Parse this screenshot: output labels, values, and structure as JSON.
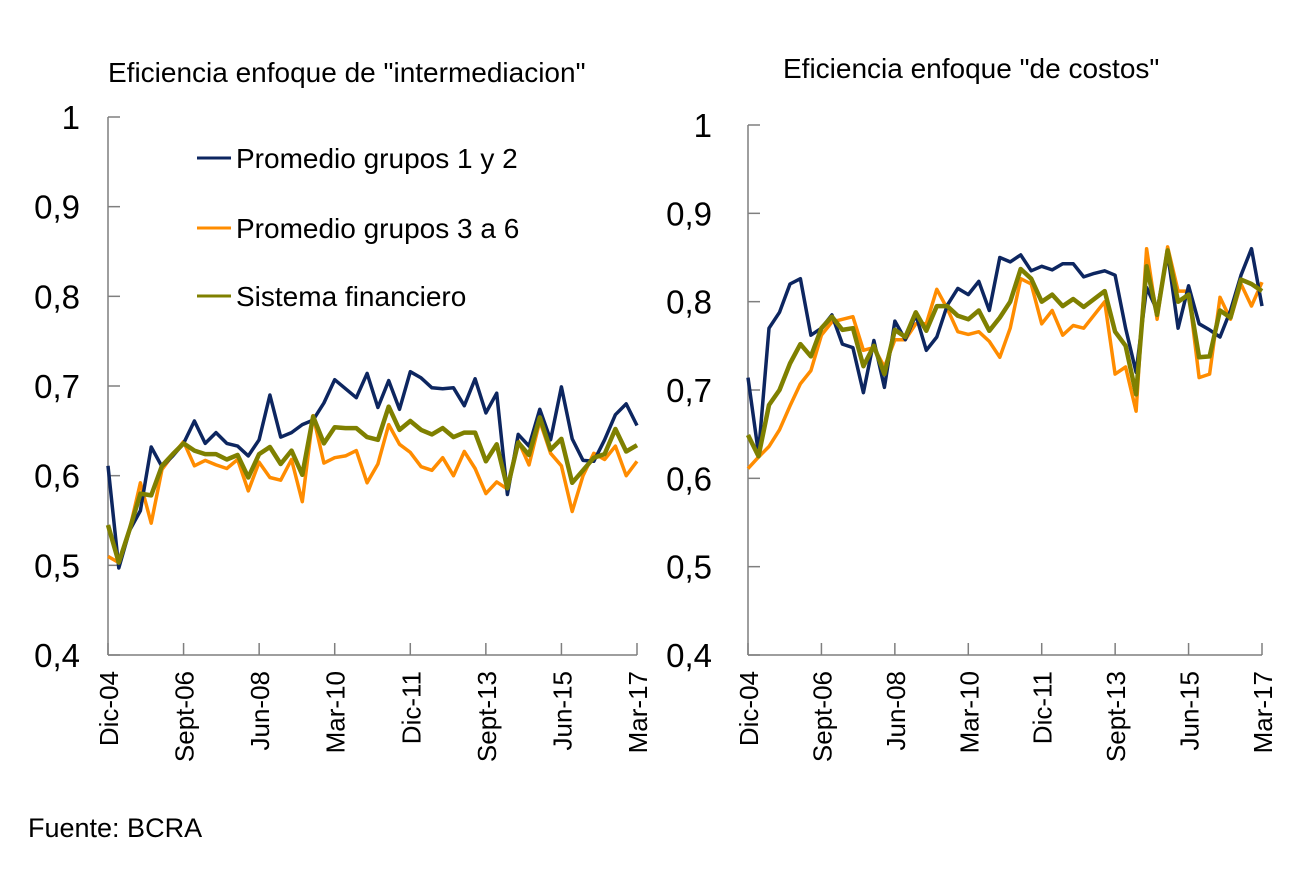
{
  "chart_data": [
    {
      "type": "line",
      "title": "Eficiencia enfoque de \"intermediacion\"",
      "xlabel": "",
      "ylabel": "",
      "ylim": [
        0.4,
        1
      ],
      "yticks": [
        "1",
        "0,9",
        "0,8",
        "0,7",
        "0,6",
        "0,5",
        "0,4"
      ],
      "ytick_values": [
        1,
        0.9,
        0.8,
        0.7,
        0.6,
        0.5,
        0.4
      ],
      "xtick_labels": [
        "Dic-04",
        "Sept-06",
        "Jun-08",
        "Mar-10",
        "Dic-11",
        "Sept-13",
        "Jun-15",
        "Mar-17"
      ],
      "frequency": "quarterly",
      "n_points": 50,
      "grid": false,
      "legend": {
        "placement": "top-left",
        "entries": [
          "Promedio grupos 1 y 2",
          "Promedio grupos 3 a 6",
          "Sistema financiero"
        ]
      },
      "series": [
        {
          "name": "Promedio grupos 1 y 2",
          "color": "#0d2660",
          "values": [
            0.611,
            0.497,
            0.539,
            0.561,
            0.632,
            0.61,
            0.622,
            0.636,
            0.661,
            0.636,
            0.648,
            0.636,
            0.633,
            0.622,
            0.64,
            0.69,
            0.643,
            0.648,
            0.657,
            0.662,
            0.681,
            0.707,
            0.697,
            0.687,
            0.714,
            0.676,
            0.706,
            0.674,
            0.716,
            0.709,
            0.698,
            0.697,
            0.698,
            0.678,
            0.708,
            0.67,
            0.692,
            0.579,
            0.646,
            0.633,
            0.674,
            0.64,
            0.699,
            0.641,
            0.617,
            0.616,
            0.64,
            0.668,
            0.68,
            0.656
          ]
        },
        {
          "name": "Promedio grupos 3 a 6",
          "color": "#ff8c00",
          "values": [
            0.51,
            0.503,
            0.54,
            0.592,
            0.547,
            0.607,
            0.623,
            0.638,
            0.611,
            0.617,
            0.612,
            0.608,
            0.618,
            0.583,
            0.615,
            0.598,
            0.595,
            0.618,
            0.571,
            0.667,
            0.614,
            0.62,
            0.622,
            0.628,
            0.592,
            0.613,
            0.657,
            0.635,
            0.626,
            0.61,
            0.606,
            0.62,
            0.6,
            0.627,
            0.608,
            0.58,
            0.593,
            0.585,
            0.639,
            0.612,
            0.661,
            0.625,
            0.611,
            0.56,
            0.6,
            0.625,
            0.618,
            0.633,
            0.6,
            0.616
          ]
        },
        {
          "name": "Sistema financiero",
          "color": "#7f8000",
          "values": [
            0.545,
            0.503,
            0.54,
            0.58,
            0.578,
            0.611,
            0.624,
            0.636,
            0.628,
            0.624,
            0.624,
            0.618,
            0.623,
            0.598,
            0.624,
            0.632,
            0.613,
            0.628,
            0.601,
            0.666,
            0.636,
            0.654,
            0.653,
            0.653,
            0.643,
            0.64,
            0.677,
            0.651,
            0.661,
            0.651,
            0.646,
            0.653,
            0.643,
            0.648,
            0.648,
            0.616,
            0.635,
            0.586,
            0.637,
            0.623,
            0.665,
            0.629,
            0.641,
            0.592,
            0.606,
            0.62,
            0.624,
            0.652,
            0.627,
            0.634
          ]
        }
      ]
    },
    {
      "type": "line",
      "title": "Eficiencia enfoque  \"de costos\"",
      "xlabel": "",
      "ylabel": "",
      "ylim": [
        0.4,
        1
      ],
      "yticks": [
        "1",
        "0,9",
        "0,8",
        "0,7",
        "0,6",
        "0,5",
        "0,4"
      ],
      "ytick_values": [
        1,
        0.9,
        0.8,
        0.7,
        0.6,
        0.5,
        0.4
      ],
      "xtick_labels": [
        "Dic-04",
        "Sept-06",
        "Jun-08",
        "Mar-10",
        "Dic-11",
        "Sept-13",
        "Jun-15",
        "Mar-17"
      ],
      "frequency": "quarterly",
      "n_points": 50,
      "grid": false,
      "series": [
        {
          "name": "Promedio grupos 1 y 2",
          "color": "#0d2660",
          "values": [
            0.714,
            0.628,
            0.77,
            0.788,
            0.82,
            0.826,
            0.762,
            0.77,
            0.785,
            0.752,
            0.748,
            0.697,
            0.756,
            0.703,
            0.778,
            0.757,
            0.785,
            0.745,
            0.76,
            0.796,
            0.815,
            0.808,
            0.823,
            0.79,
            0.85,
            0.845,
            0.853,
            0.835,
            0.84,
            0.836,
            0.843,
            0.843,
            0.828,
            0.832,
            0.835,
            0.83,
            0.77,
            0.72,
            0.816,
            0.79,
            0.855,
            0.77,
            0.818,
            0.775,
            0.768,
            0.76,
            0.79,
            0.83,
            0.86,
            0.795
          ]
        },
        {
          "name": "Promedio grupos 3 a 6",
          "color": "#ff8c00",
          "values": [
            0.611,
            0.624,
            0.636,
            0.655,
            0.682,
            0.707,
            0.722,
            0.762,
            0.777,
            0.78,
            0.783,
            0.745,
            0.748,
            0.726,
            0.757,
            0.757,
            0.775,
            0.775,
            0.814,
            0.792,
            0.766,
            0.763,
            0.766,
            0.755,
            0.737,
            0.77,
            0.826,
            0.82,
            0.775,
            0.79,
            0.762,
            0.773,
            0.77,
            0.785,
            0.8,
            0.718,
            0.726,
            0.676,
            0.86,
            0.78,
            0.862,
            0.812,
            0.812,
            0.714,
            0.718,
            0.805,
            0.78,
            0.82,
            0.795,
            0.822
          ]
        },
        {
          "name": "Sistema financiero",
          "color": "#7f8000",
          "values": [
            0.649,
            0.625,
            0.683,
            0.7,
            0.73,
            0.752,
            0.738,
            0.77,
            0.783,
            0.768,
            0.77,
            0.727,
            0.75,
            0.718,
            0.768,
            0.76,
            0.788,
            0.767,
            0.795,
            0.795,
            0.784,
            0.78,
            0.79,
            0.767,
            0.782,
            0.8,
            0.837,
            0.826,
            0.8,
            0.808,
            0.795,
            0.803,
            0.794,
            0.803,
            0.812,
            0.766,
            0.75,
            0.695,
            0.84,
            0.785,
            0.858,
            0.8,
            0.808,
            0.737,
            0.738,
            0.79,
            0.782,
            0.825,
            0.82,
            0.812
          ]
        }
      ]
    }
  ],
  "source_note": "Fuente:  BCRA"
}
